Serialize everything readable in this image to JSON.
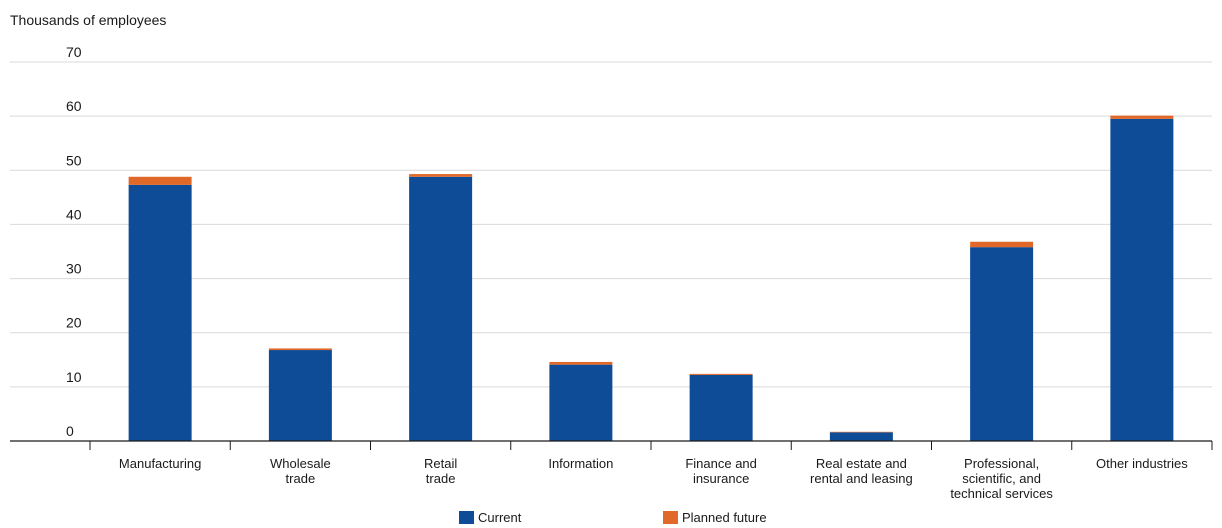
{
  "chart_data": {
    "type": "bar",
    "stacked": true,
    "ylabel": "Thousands of employees",
    "ylim": [
      0,
      70
    ],
    "yticks": [
      0,
      10,
      20,
      30,
      40,
      50,
      60,
      70
    ],
    "grid": true,
    "legend_position": "bottom-center",
    "categories": [
      [
        "Manufacturing"
      ],
      [
        "Wholesale",
        "trade"
      ],
      [
        "Retail",
        "trade"
      ],
      [
        "Information"
      ],
      [
        "Finance and",
        "insurance"
      ],
      [
        "Real estate and",
        "rental and leasing"
      ],
      [
        "Professional,",
        "scientific, and",
        "technical services"
      ],
      [
        "Other industries"
      ]
    ],
    "series": [
      {
        "name": "Current",
        "color": "#0f4c97",
        "values": [
          47.3,
          16.8,
          48.8,
          14.1,
          12.2,
          1.6,
          35.8,
          59.5
        ]
      },
      {
        "name": "Planned future",
        "color": "#e0692a",
        "values": [
          1.5,
          0.3,
          0.5,
          0.5,
          0.2,
          0.1,
          1.0,
          0.6
        ]
      }
    ]
  }
}
